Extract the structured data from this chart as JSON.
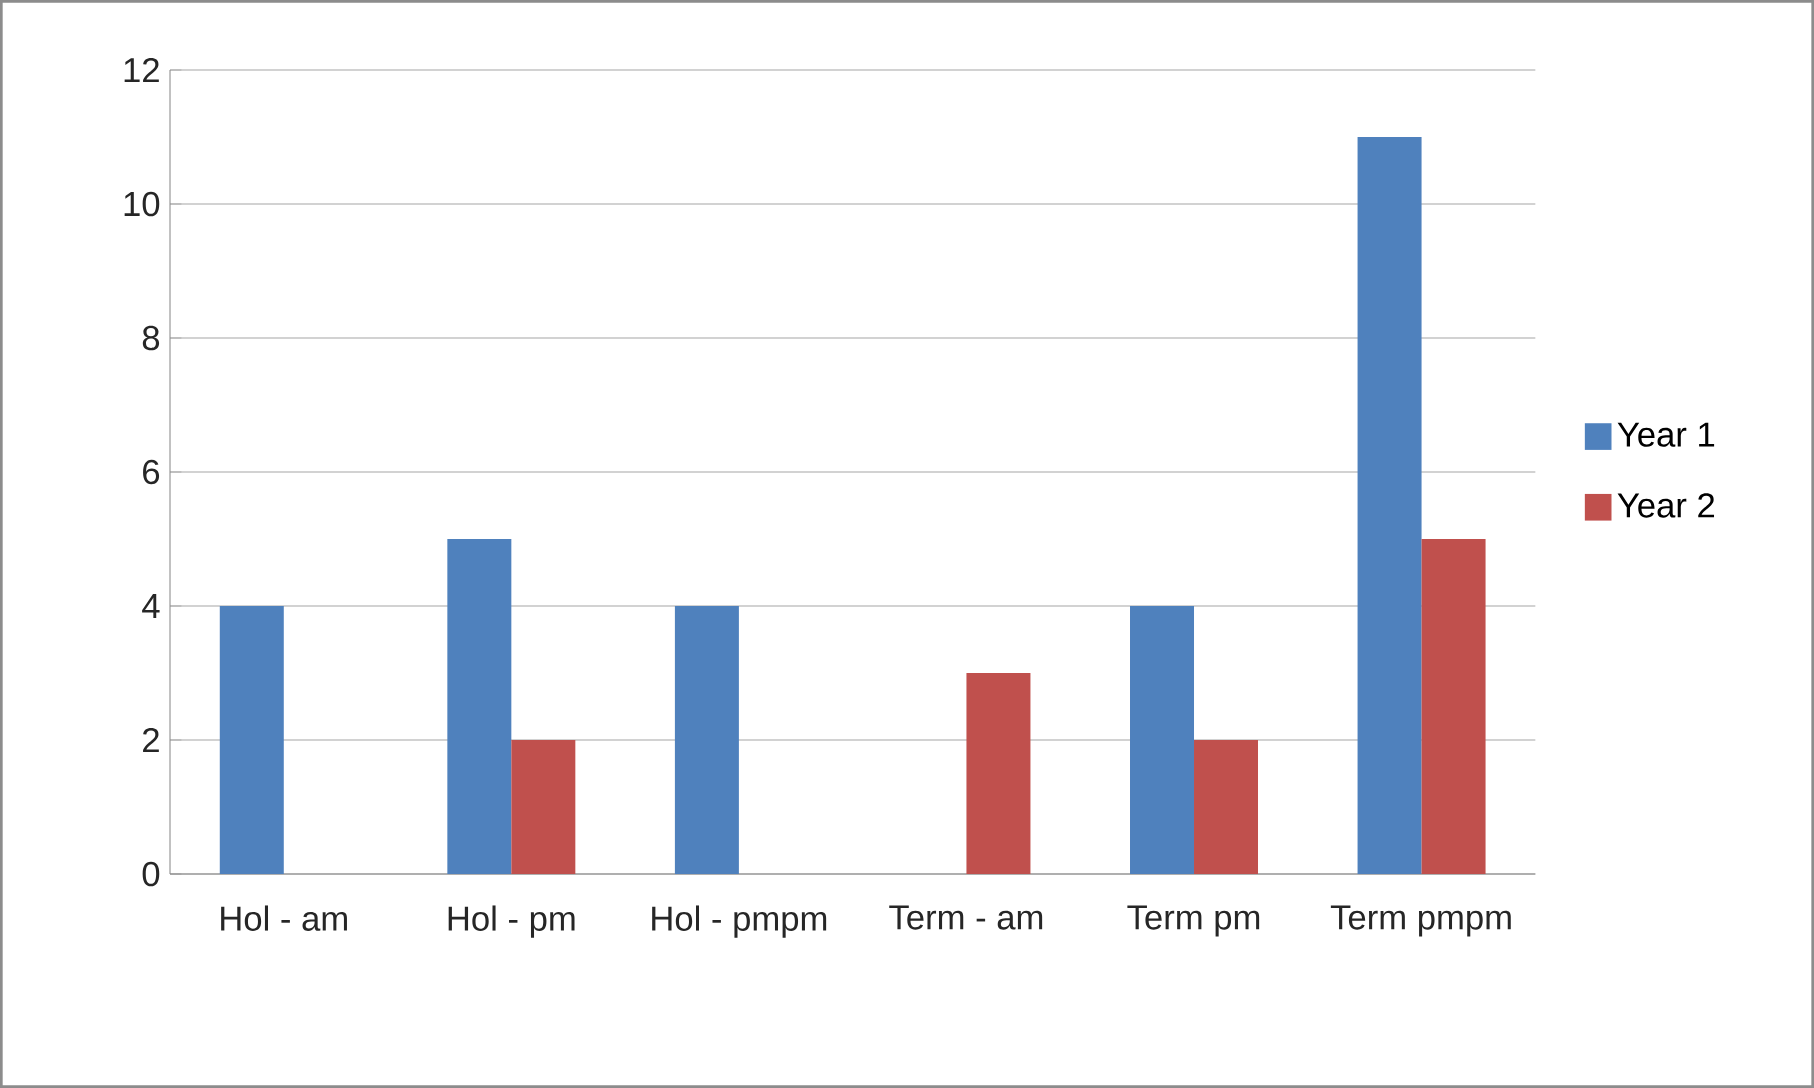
{
  "chart_data": {
    "type": "bar",
    "categories": [
      "Hol - am",
      "Hol - pm",
      "Hol - pmpm",
      "Term - am",
      "Term pm",
      "Term pmpm"
    ],
    "series": [
      {
        "name": "Year 1",
        "color": "#4f81bd",
        "values": [
          4,
          5,
          4,
          0,
          4,
          11
        ]
      },
      {
        "name": "Year 2",
        "color": "#c0504d",
        "values": [
          0,
          2,
          0,
          3,
          2,
          5
        ]
      }
    ],
    "ylim": [
      0,
      12
    ],
    "yticks": [
      0,
      2,
      4,
      6,
      8,
      10,
      12
    ],
    "grid": "y",
    "legend": "right"
  }
}
